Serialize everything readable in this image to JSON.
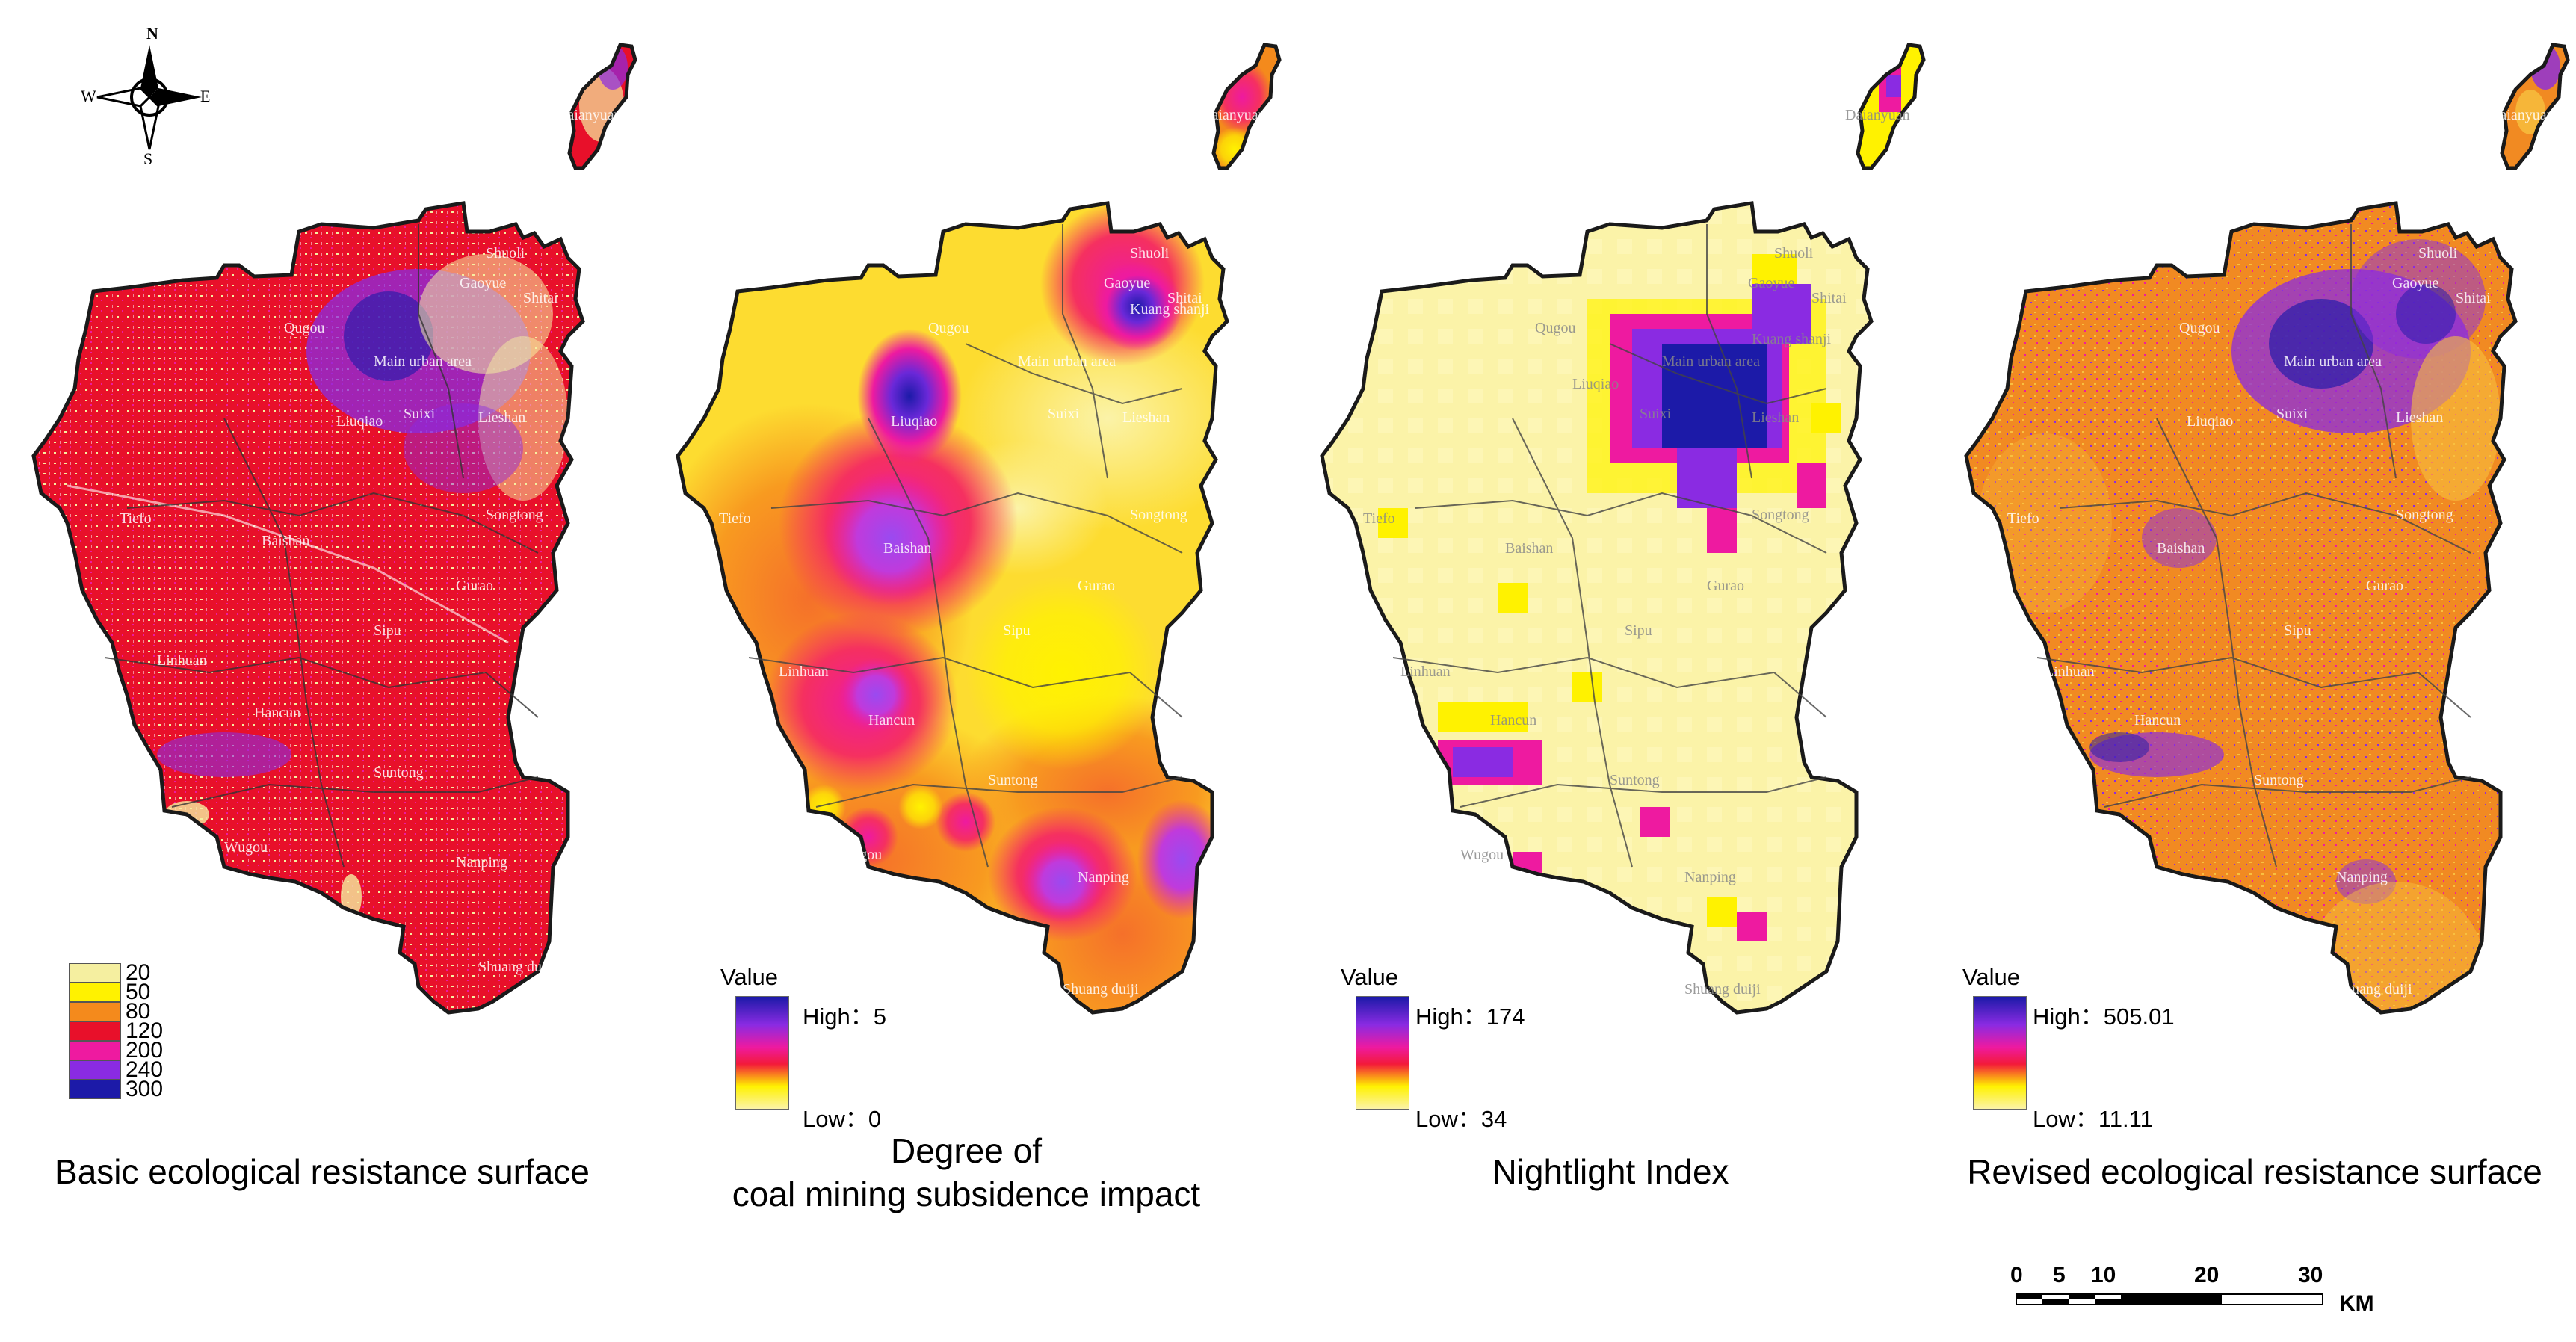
{
  "compass": {
    "n": "N",
    "s": "S",
    "e": "E",
    "w": "W"
  },
  "colors": {
    "outline": "#1a1a1a",
    "boundary": "#3a3a3a",
    "resistance_red": "#e8102a",
    "deep_blue": "#1c1aa8",
    "violet": "#8a2be2",
    "magenta": "#ee1aa0",
    "orange": "#f48a1c",
    "yellow": "#fff200",
    "pale_yellow": "#fbf3a8"
  },
  "towns": [
    "Daianyuan",
    "Shuoli",
    "Gaoyue",
    "Shitai",
    "Qugou",
    "Main urban area",
    "Kuang shanji",
    "Suixi",
    "Lieshan",
    "Liuqiao",
    "Tiefo",
    "Baishan",
    "Songtong",
    "Gurao",
    "Sipu",
    "Linhuan",
    "Hancun",
    "Suntong",
    "Wugou",
    "Nanping",
    "Shuang duiji"
  ],
  "panels": [
    {
      "caption_lines": [
        "Basic ecological resistance surface"
      ],
      "legend_type": "classes",
      "classes": [
        {
          "label": "20",
          "color": "#f5efa0"
        },
        {
          "label": "50",
          "color": "#fff200"
        },
        {
          "label": "80",
          "color": "#f48a1c"
        },
        {
          "label": "120",
          "color": "#e8102a"
        },
        {
          "label": "200",
          "color": "#ee1aa0"
        },
        {
          "label": "240",
          "color": "#8a2be2"
        },
        {
          "label": "300",
          "color": "#1c1aa8"
        }
      ]
    },
    {
      "caption_lines": [
        "Degree of",
        "coal mining subsidence impact"
      ],
      "legend_type": "gradient",
      "legend_title": "Value",
      "high_label": "High：5",
      "low_label": "Low：0"
    },
    {
      "caption_lines": [
        "Nightlight Index"
      ],
      "legend_type": "gradient",
      "legend_title": "Value",
      "high_label": "High：174",
      "low_label": "Low：34"
    },
    {
      "caption_lines": [
        "Revised ecological resistance surface"
      ],
      "legend_type": "gradient",
      "legend_title": "Value",
      "high_label": "High：505.01",
      "low_label": "Low：11.11"
    }
  ],
  "scalebar": {
    "ticks": [
      "0",
      "5",
      "10",
      "20",
      "30"
    ],
    "unit": "KM"
  }
}
